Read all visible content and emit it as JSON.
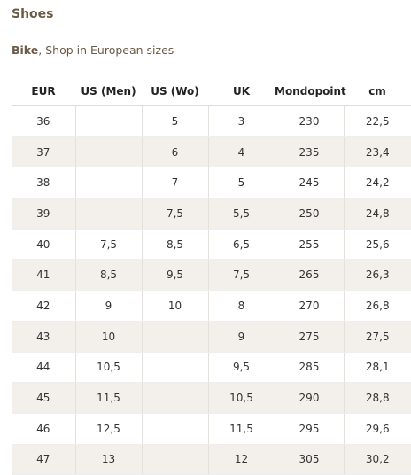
{
  "header": {
    "title": "Shoes",
    "subtitle": {
      "bold": "Bike",
      "rest": ", Shop in European sizes"
    }
  },
  "table": {
    "columns": [
      "EUR",
      "US (Men)",
      "US (Wo)",
      "UK",
      "Mondopoint",
      "cm"
    ],
    "rows": [
      [
        "36",
        null,
        "5",
        "3",
        "230",
        "22,5"
      ],
      [
        "37",
        null,
        "6",
        "4",
        "235",
        "23,4"
      ],
      [
        "38",
        null,
        "7",
        "5",
        "245",
        "24,2"
      ],
      [
        "39",
        null,
        "7,5",
        "5,5",
        "250",
        "24,8"
      ],
      [
        "40",
        "7,5",
        "8,5",
        "6,5",
        "255",
        "25,6"
      ],
      [
        "41",
        "8,5",
        "9,5",
        "7,5",
        "265",
        "26,3"
      ],
      [
        "42",
        "9",
        "10",
        "8",
        "270",
        "26,8"
      ],
      [
        "43",
        "10",
        null,
        "9",
        "275",
        "27,5"
      ],
      [
        "44",
        "10,5",
        null,
        "9,5",
        "285",
        "28,1"
      ],
      [
        "45",
        "11,5",
        null,
        "10,5",
        "290",
        "28,8"
      ],
      [
        "46",
        "12,5",
        null,
        "11,5",
        "295",
        "29,6"
      ],
      [
        "47",
        "13",
        null,
        "12",
        "305",
        "30,2"
      ]
    ]
  }
}
